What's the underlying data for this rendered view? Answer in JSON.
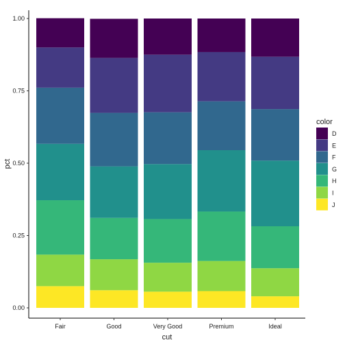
{
  "chart_data": {
    "type": "bar",
    "stacked": true,
    "title": "",
    "xlabel": "cut",
    "ylabel": "pct",
    "ylim": [
      0,
      1
    ],
    "yticks": [
      0.0,
      0.25,
      0.5,
      0.75,
      1.0
    ],
    "ytick_labels": [
      "0.00",
      "0.25",
      "0.50",
      "0.75",
      "1.00"
    ],
    "categories": [
      "Fair",
      "Good",
      "Very Good",
      "Premium",
      "Ideal"
    ],
    "grid": false,
    "legend_position": "right",
    "legend_title": "color",
    "stack_order_top_to_bottom": [
      "D",
      "E",
      "F",
      "G",
      "H",
      "I",
      "J"
    ],
    "series": [
      {
        "name": "D",
        "color": "#440154",
        "values": [
          0.101,
          0.135,
          0.125,
          0.116,
          0.132
        ]
      },
      {
        "name": "E",
        "color": "#443A83",
        "values": [
          0.139,
          0.19,
          0.199,
          0.17,
          0.181
        ]
      },
      {
        "name": "F",
        "color": "#31688E",
        "values": [
          0.194,
          0.185,
          0.179,
          0.169,
          0.178
        ]
      },
      {
        "name": "G",
        "color": "#21908C",
        "values": [
          0.195,
          0.178,
          0.19,
          0.212,
          0.227
        ]
      },
      {
        "name": "H",
        "color": "#35B779",
        "values": [
          0.188,
          0.143,
          0.151,
          0.171,
          0.145
        ]
      },
      {
        "name": "I",
        "color": "#8FD744",
        "values": [
          0.109,
          0.107,
          0.1,
          0.104,
          0.097
        ]
      },
      {
        "name": "J",
        "color": "#FDE725",
        "values": [
          0.075,
          0.061,
          0.056,
          0.058,
          0.04
        ]
      }
    ]
  }
}
